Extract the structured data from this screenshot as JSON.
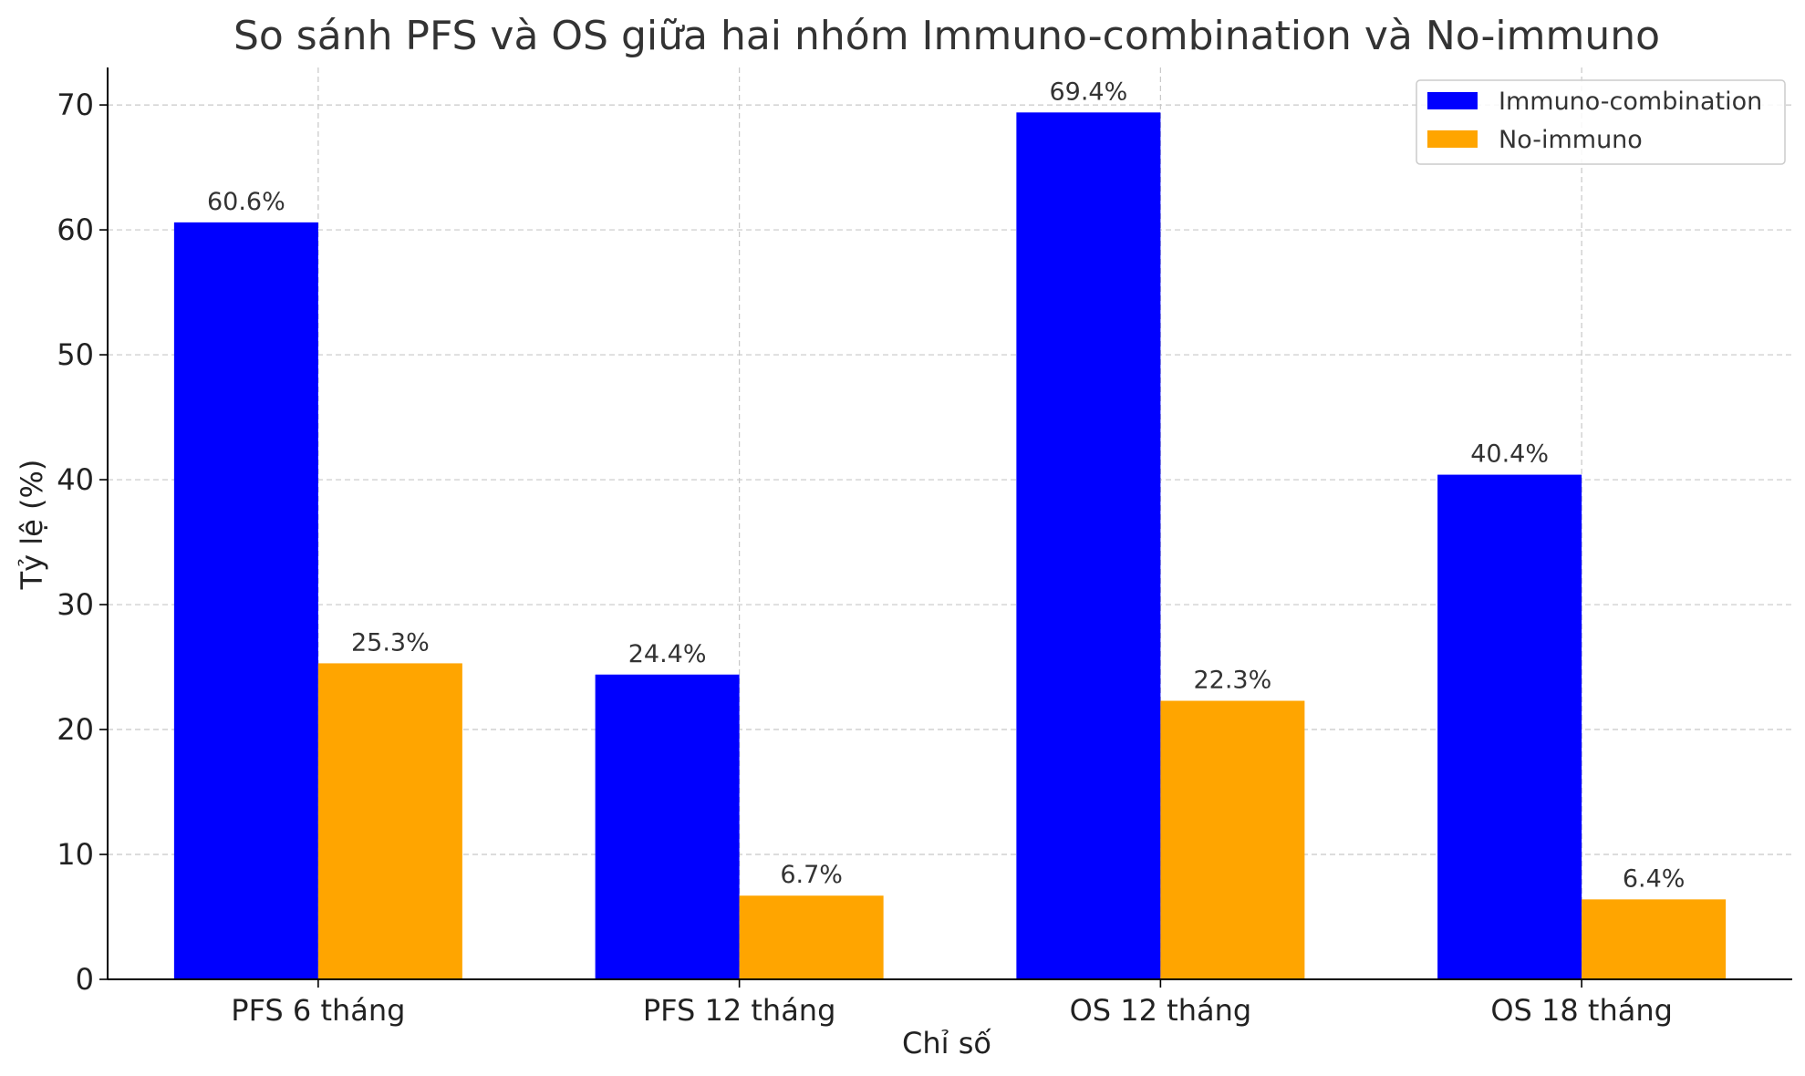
{
  "chart_data": {
    "type": "bar",
    "title": "So sánh PFS và OS giữa hai nhóm Immuno-combination và No-immuno",
    "xlabel": "Chỉ số",
    "ylabel": "Tỷ lệ (%)",
    "categories": [
      "PFS 6 tháng",
      "PFS 12 tháng",
      "OS 12 tháng",
      "OS 18 tháng"
    ],
    "series": [
      {
        "name": "Immuno-combination",
        "color": "#0000ff",
        "values": [
          60.6,
          24.4,
          69.4,
          40.4
        ],
        "labels": [
          "60.6%",
          "24.4%",
          "69.4%",
          "40.4%"
        ]
      },
      {
        "name": "No-immuno",
        "color": "#ffa500",
        "values": [
          25.3,
          6.7,
          22.3,
          6.4
        ],
        "labels": [
          "25.3%",
          "6.7%",
          "22.3%",
          "6.4%"
        ]
      }
    ],
    "ylim": [
      0,
      73
    ],
    "yticks": [
      0,
      10,
      20,
      30,
      40,
      50,
      60,
      70
    ],
    "grid": true,
    "legend_position": "top-right"
  }
}
